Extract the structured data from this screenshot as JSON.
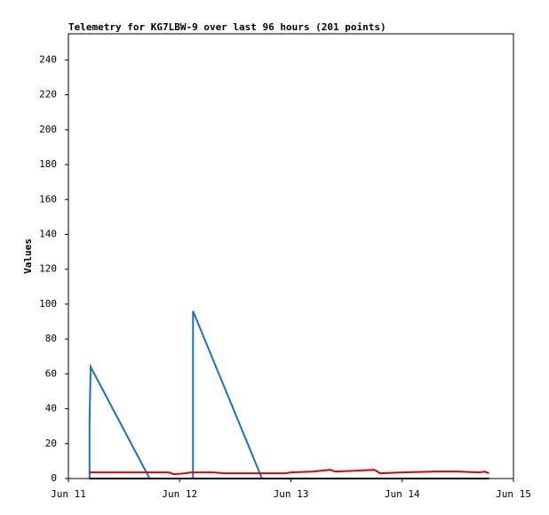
{
  "chart_data": {
    "type": "line",
    "title": "Telemetry for KG7LBW-9 over last 96 hours (201 points)",
    "y_label": "Values",
    "xlim": [
      0,
      4
    ],
    "xticks": [
      {
        "value": 0,
        "label": "Jun 11"
      },
      {
        "value": 1,
        "label": "Jun 12"
      },
      {
        "value": 2,
        "label": "Jun 13"
      },
      {
        "value": 3,
        "label": "Jun 14"
      },
      {
        "value": 4,
        "label": "Jun 15"
      }
    ],
    "ylim": [
      0,
      255
    ],
    "yticks": [
      0,
      20,
      40,
      60,
      80,
      100,
      120,
      140,
      160,
      180,
      200,
      220,
      240
    ],
    "grid": false,
    "series": [
      {
        "color": "#1f6fc0",
        "x": [
          0.19,
          0.19,
          0.2,
          0.73,
          1.12,
          1.12,
          1.74,
          3.78
        ],
        "values": [
          0,
          32,
          64,
          0,
          0,
          96,
          0,
          0
        ]
      },
      {
        "color": "#e00000",
        "x": [
          0.19,
          0.5,
          0.9,
          0.95,
          1.05,
          1.1,
          1.3,
          1.4,
          1.7,
          1.95,
          2.0,
          2.2,
          2.35,
          2.4,
          2.6,
          2.75,
          2.8,
          3.0,
          3.3,
          3.5,
          3.7,
          3.74,
          3.78
        ],
        "values": [
          3.5,
          3.5,
          3.5,
          2.5,
          3,
          3.5,
          3.5,
          3,
          3,
          3,
          3.5,
          4,
          5,
          4,
          4.5,
          5,
          3,
          3.5,
          4,
          4,
          3.5,
          4,
          3
        ]
      },
      {
        "color": "#000000",
        "x": [
          0.19,
          3.78
        ],
        "values": [
          0,
          0
        ]
      }
    ]
  }
}
